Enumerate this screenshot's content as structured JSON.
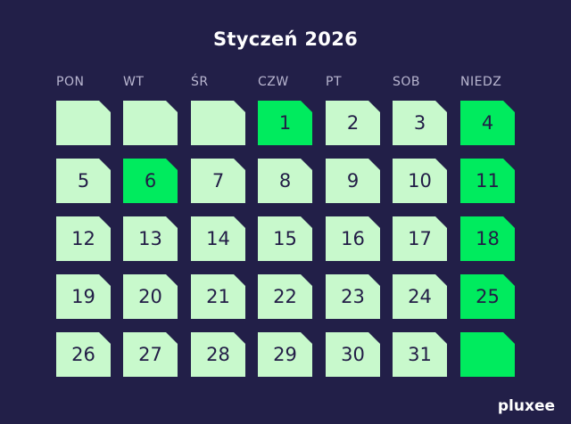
{
  "title": "Styczeń 2026",
  "weekdays": [
    "PON",
    "WT",
    "ŚR",
    "CZW",
    "PT",
    "SOB",
    "NIEDZ"
  ],
  "colors": {
    "background": "#221f48",
    "day": "#c8f9cc",
    "highlight": "#00eb5e",
    "text": "#221c46"
  },
  "weeks": [
    [
      {
        "d": "",
        "hl": false
      },
      {
        "d": "",
        "hl": false
      },
      {
        "d": "",
        "hl": false
      },
      {
        "d": "1",
        "hl": true
      },
      {
        "d": "2",
        "hl": false
      },
      {
        "d": "3",
        "hl": false
      },
      {
        "d": "4",
        "hl": true
      }
    ],
    [
      {
        "d": "5",
        "hl": false
      },
      {
        "d": "6",
        "hl": true
      },
      {
        "d": "7",
        "hl": false
      },
      {
        "d": "8",
        "hl": false
      },
      {
        "d": "9",
        "hl": false
      },
      {
        "d": "10",
        "hl": false
      },
      {
        "d": "11",
        "hl": true
      }
    ],
    [
      {
        "d": "12",
        "hl": false
      },
      {
        "d": "13",
        "hl": false
      },
      {
        "d": "14",
        "hl": false
      },
      {
        "d": "15",
        "hl": false
      },
      {
        "d": "16",
        "hl": false
      },
      {
        "d": "17",
        "hl": false
      },
      {
        "d": "18",
        "hl": true
      }
    ],
    [
      {
        "d": "19",
        "hl": false
      },
      {
        "d": "20",
        "hl": false
      },
      {
        "d": "21",
        "hl": false
      },
      {
        "d": "22",
        "hl": false
      },
      {
        "d": "23",
        "hl": false
      },
      {
        "d": "24",
        "hl": false
      },
      {
        "d": "25",
        "hl": true
      }
    ],
    [
      {
        "d": "26",
        "hl": false
      },
      {
        "d": "27",
        "hl": false
      },
      {
        "d": "28",
        "hl": false
      },
      {
        "d": "29",
        "hl": false
      },
      {
        "d": "30",
        "hl": false
      },
      {
        "d": "31",
        "hl": false
      },
      {
        "d": "",
        "hl": true
      }
    ]
  ],
  "logo": "pluxee"
}
